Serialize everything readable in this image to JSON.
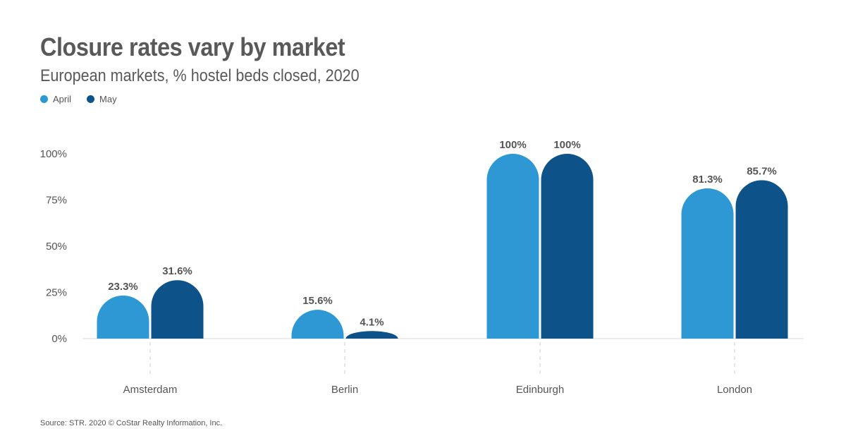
{
  "chart_data": {
    "type": "bar",
    "title": "Closure rates vary by market",
    "subtitle": "European markets, % hostel beds closed, 2020",
    "categories": [
      "Amsterdam",
      "Berlin",
      "Edinburgh",
      "London"
    ],
    "series": [
      {
        "name": "April",
        "color": "#2e98d4",
        "values": [
          23.3,
          15.6,
          100,
          81.3
        ],
        "labels": [
          "23.3%",
          "15.6%",
          "100%",
          "81.3%"
        ]
      },
      {
        "name": "May",
        "color": "#0d5389",
        "values": [
          31.6,
          4.1,
          100,
          85.7
        ],
        "labels": [
          "31.6%",
          "4.1%",
          "100%",
          "85.7%"
        ]
      }
    ],
    "y_ticks": [
      0,
      25,
      50,
      75,
      100
    ],
    "y_tick_labels": [
      "0%",
      "25%",
      "50%",
      "75%",
      "100%"
    ],
    "ylim": [
      0,
      100
    ],
    "xlabel": "",
    "ylabel": "",
    "legend_position": "top-left",
    "grid": false
  },
  "source": "Source: STR. 2020 © CoStar Realty Information, Inc."
}
